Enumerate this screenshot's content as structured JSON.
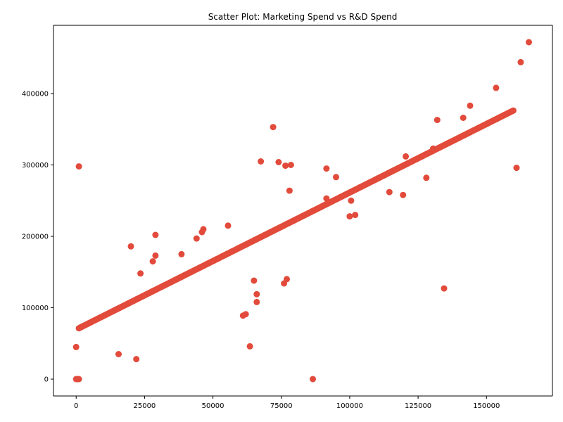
{
  "chart_data": {
    "type": "scatter",
    "title": "Scatter Plot: Marketing Spend vs R&D Spend",
    "xlabel": "",
    "ylabel": "",
    "xlim": [
      -8290,
      174110
    ],
    "ylim": [
      -23600,
      495600
    ],
    "x_ticks": [
      0,
      25000,
      50000,
      75000,
      100000,
      125000,
      150000
    ],
    "x_tick_labels": [
      "0",
      "25000",
      "50000",
      "75000",
      "100000",
      "125000",
      "150000"
    ],
    "y_ticks": [
      0,
      100000,
      200000,
      300000,
      400000
    ],
    "y_tick_labels": [
      "0",
      "100000",
      "200000",
      "300000",
      "400000"
    ],
    "grid": false,
    "marker_color": "#e24a3b",
    "trend_series": {
      "x_start": 1000,
      "x_end": 160000,
      "intercept": 69400,
      "slope": 1.92,
      "step": 400
    },
    "outliers": [
      [
        0,
        0
      ],
      [
        500,
        0
      ],
      [
        1000,
        0
      ],
      [
        0,
        45000
      ],
      [
        1000,
        298000
      ],
      [
        15500,
        35000
      ],
      [
        22000,
        28000
      ],
      [
        20000,
        186000
      ],
      [
        23500,
        148000
      ],
      [
        28000,
        165000
      ],
      [
        29000,
        173000
      ],
      [
        29000,
        202000
      ],
      [
        38500,
        175000
      ],
      [
        44000,
        197000
      ],
      [
        46000,
        206000
      ],
      [
        46500,
        210000
      ],
      [
        55500,
        215000
      ],
      [
        61000,
        89000
      ],
      [
        62000,
        91000
      ],
      [
        63500,
        46000
      ],
      [
        65000,
        138000
      ],
      [
        66000,
        108000
      ],
      [
        66000,
        119000
      ],
      [
        67500,
        305000
      ],
      [
        72000,
        353000
      ],
      [
        74000,
        304000
      ],
      [
        76000,
        134000
      ],
      [
        76500,
        299000
      ],
      [
        77000,
        140000
      ],
      [
        78000,
        264000
      ],
      [
        78500,
        300000
      ],
      [
        86500,
        0
      ],
      [
        91500,
        295000
      ],
      [
        91500,
        253000
      ],
      [
        95000,
        283000
      ],
      [
        100000,
        228000
      ],
      [
        100500,
        250000
      ],
      [
        102000,
        230000
      ],
      [
        114500,
        262000
      ],
      [
        119500,
        258000
      ],
      [
        120500,
        312000
      ],
      [
        128000,
        282000
      ],
      [
        130500,
        323000
      ],
      [
        132000,
        363000
      ],
      [
        134500,
        127000
      ],
      [
        141500,
        366000
      ],
      [
        144000,
        383000
      ],
      [
        153500,
        408000
      ],
      [
        161000,
        296000
      ],
      [
        162500,
        444000
      ],
      [
        165500,
        472000
      ]
    ]
  }
}
